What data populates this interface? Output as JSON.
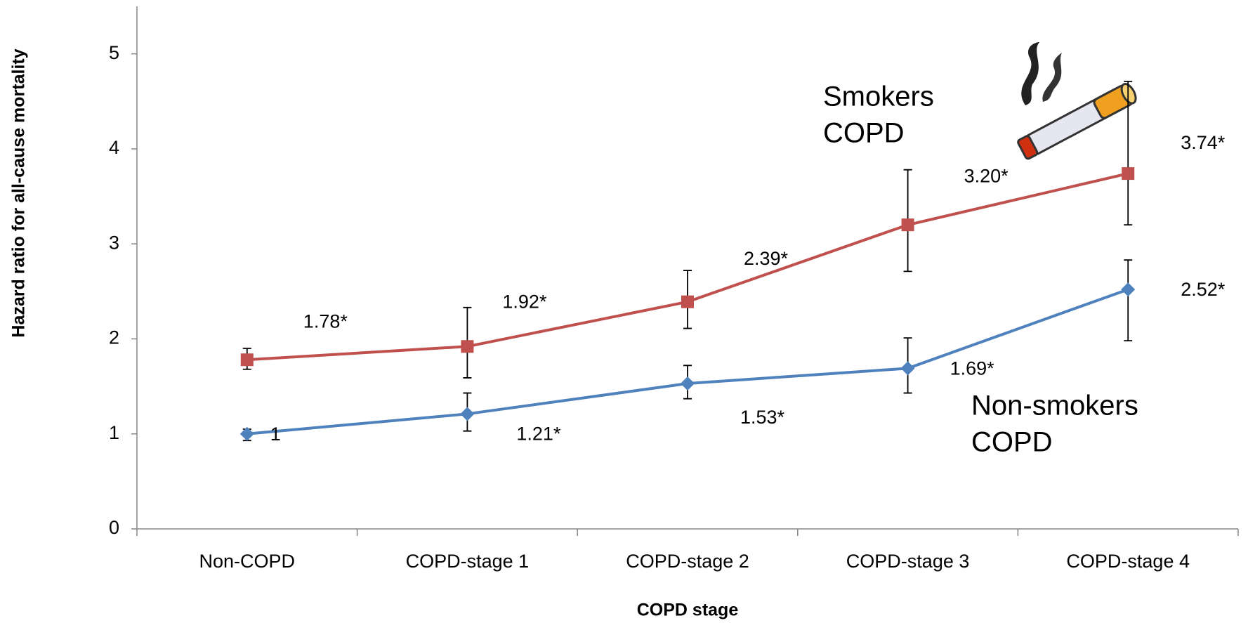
{
  "chart_data": {
    "type": "line",
    "x_label": "COPD stage",
    "y_label": "Hazard ratio for all-cause mortality",
    "categories": [
      "Non-COPD",
      "COPD-stage 1",
      "COPD-stage 2",
      "COPD-stage 3",
      "COPD-stage 4"
    ],
    "ylim": [
      0,
      5.5
    ],
    "yticks": [
      0,
      1,
      2,
      3,
      4,
      5
    ],
    "series": [
      {
        "label": [
          "Smokers",
          "COPD"
        ],
        "color": "#c0504d",
        "marker": "square",
        "values": [
          1.78,
          1.92,
          2.39,
          3.2,
          3.74
        ],
        "value_labels": [
          "1.78*",
          "1.92*",
          "2.39*",
          "3.20*",
          "3.74*"
        ],
        "ci_low": [
          1.68,
          1.59,
          2.11,
          2.71,
          3.2
        ],
        "ci_high": [
          1.9,
          2.33,
          2.72,
          3.78,
          4.71
        ]
      },
      {
        "label": [
          "Non-smokers",
          "COPD"
        ],
        "color": "#4f81bd",
        "marker": "diamond",
        "values": [
          1,
          1.21,
          1.53,
          1.69,
          2.52
        ],
        "value_labels": [
          "1",
          "1.21*",
          "1.53*",
          "1.69*",
          "2.52*"
        ],
        "ci_low": [
          0.93,
          1.03,
          1.37,
          1.43,
          1.98
        ],
        "ci_high": [
          1.05,
          1.43,
          1.72,
          2.01,
          2.83
        ]
      }
    ]
  }
}
